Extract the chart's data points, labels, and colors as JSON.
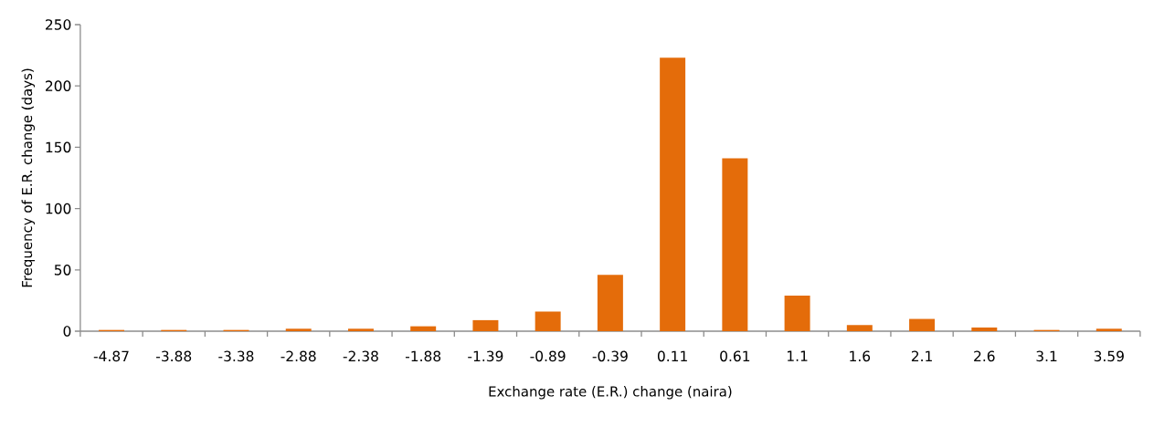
{
  "chart_data": {
    "type": "bar",
    "xlabel": "Exchange rate  (E.R.) change (naira)",
    "ylabel": "Frequency of E.R. change (days)",
    "categories": [
      "-4.87",
      "-3.88",
      "-3.38",
      "-2.88",
      "-2.38",
      "-1.88",
      "-1.39",
      "-0.89",
      "-0.39",
      "0.11",
      "0.61",
      "1.1",
      "1.6",
      "2.1",
      "2.6",
      "3.1",
      "3.59"
    ],
    "values": [
      1,
      1,
      1,
      2,
      2,
      4,
      9,
      16,
      46,
      223,
      141,
      29,
      5,
      10,
      3,
      1,
      2
    ],
    "color": "#e46c0a",
    "ylim": [
      0,
      250
    ],
    "yticks": [
      0,
      50,
      100,
      150,
      200,
      250
    ],
    "grid": false
  }
}
